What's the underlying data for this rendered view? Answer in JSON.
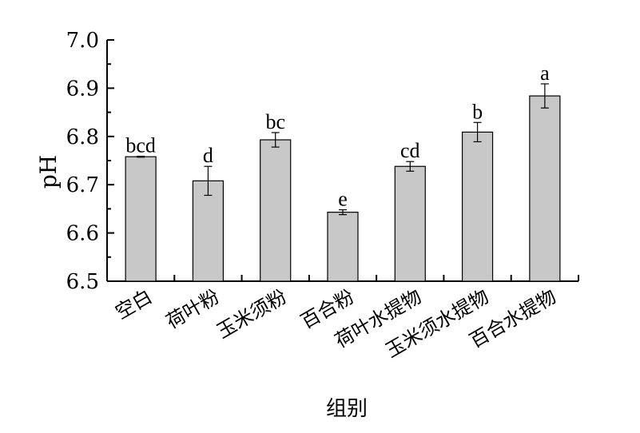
{
  "chart_data": {
    "type": "bar",
    "title": "",
    "xlabel": "组别",
    "ylabel": "pH",
    "ylim": [
      6.5,
      7.0
    ],
    "yticks": [
      "6.5",
      "6.6",
      "6.7",
      "6.8",
      "6.9",
      "7.0"
    ],
    "categories": [
      "空白",
      "荷叶粉",
      "玉米须粉",
      "百合粉",
      "荷叶水提物",
      "玉米须水提物",
      "百合水提物"
    ],
    "values": [
      6.758,
      6.708,
      6.793,
      6.643,
      6.738,
      6.809,
      6.884
    ],
    "errors": [
      0.001,
      0.03,
      0.015,
      0.005,
      0.01,
      0.02,
      0.025
    ],
    "significance": [
      "bcd",
      "d",
      "bc",
      "e",
      "cd",
      "b",
      "a"
    ],
    "bar_color": "#c8c8c8",
    "grid": false,
    "legend": "none"
  }
}
